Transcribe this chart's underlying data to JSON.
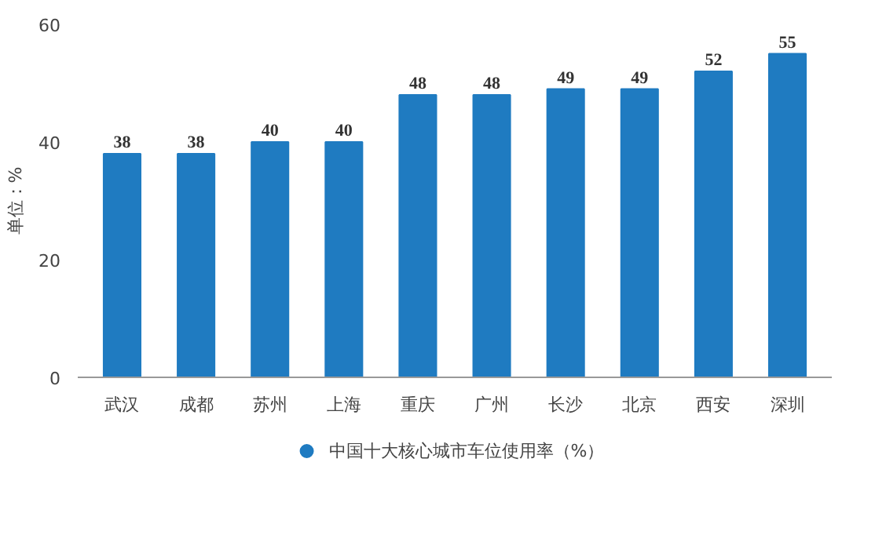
{
  "chart_data": {
    "type": "bar",
    "categories": [
      "武汉",
      "成都",
      "苏州",
      "上海",
      "重庆",
      "广州",
      "长沙",
      "北京",
      "西安",
      "深圳"
    ],
    "series": [
      {
        "name": "中国十大核心城市车位使用率（%）",
        "color": "#1f7bc1",
        "values": [
          38,
          38,
          40,
          40,
          48,
          48,
          49,
          49,
          52,
          55
        ]
      }
    ],
    "ylabel": "单位：%",
    "ylim": [
      0,
      60
    ],
    "yticks": [
      0,
      20,
      40,
      60
    ],
    "data_labels": true,
    "grid": false,
    "legend": "bottom"
  }
}
